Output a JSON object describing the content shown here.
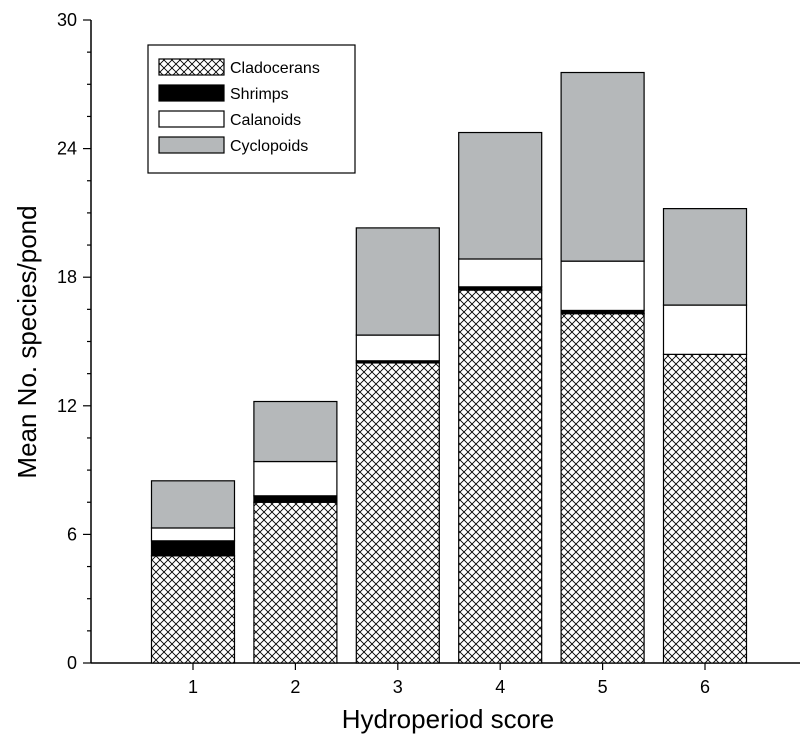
{
  "chart_data": {
    "type": "bar",
    "stacked": true,
    "categories": [
      "1",
      "2",
      "3",
      "4",
      "5",
      "6"
    ],
    "series": [
      {
        "name": "Cladocerans",
        "values": [
          5.0,
          7.5,
          14.0,
          17.4,
          16.3,
          14.4
        ],
        "pattern": "crosshatch",
        "color": "#000000"
      },
      {
        "name": "Shrimps",
        "values": [
          0.7,
          0.3,
          0.1,
          0.15,
          0.15,
          0.0
        ],
        "color": "#000000"
      },
      {
        "name": "Calanoids",
        "values": [
          0.6,
          1.6,
          1.2,
          1.3,
          2.3,
          2.3
        ],
        "color": "#ffffff"
      },
      {
        "name": "Cyclopoids",
        "values": [
          2.2,
          2.8,
          5.0,
          5.9,
          8.8,
          4.5
        ],
        "color": "#b5b8ba"
      }
    ],
    "xlabel": "Hydroperiod score",
    "ylabel": "Mean No. species/pond",
    "ylim": [
      0,
      30
    ],
    "yticks": [
      0,
      6,
      12,
      18,
      24,
      30
    ],
    "legend_position": "top-left",
    "grid": false
  }
}
